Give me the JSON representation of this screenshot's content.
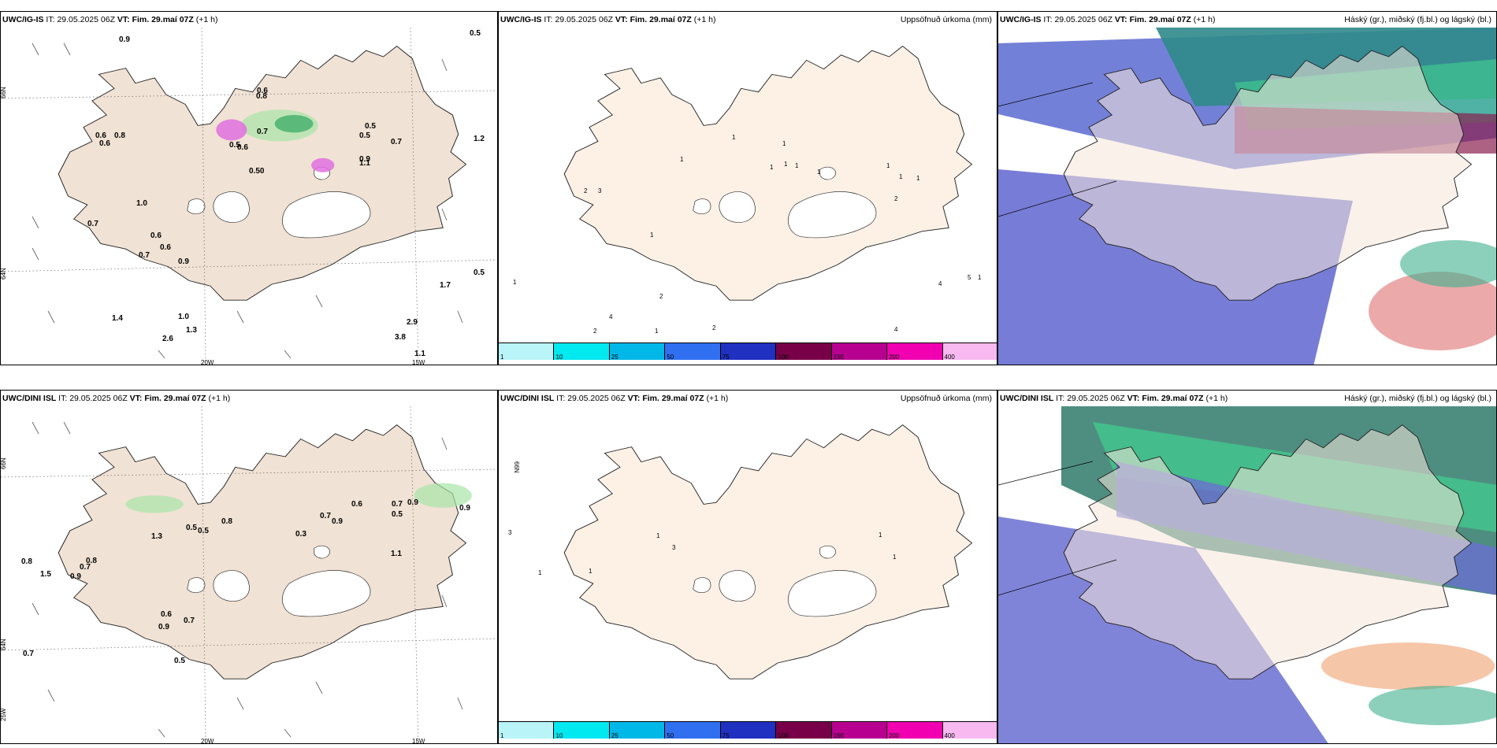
{
  "panels": [
    {
      "header": {
        "model": "UWC/IG-IS",
        "it_label": "IT:",
        "it_value": "29.05.2025 06Z",
        "vt_label": "VT:",
        "vt_value": "Fim. 29.maí 07Z",
        "lead": "(+1 h)"
      }
    },
    {
      "header": {
        "model": "UWC/IG-IS",
        "it_label": "IT:",
        "it_value": "29.05.2025 06Z",
        "vt_label": "VT:",
        "vt_value": "Fim. 29.maí 07Z",
        "lead": "(+1 h)"
      },
      "title_right": "Uppsöfnuð úrkoma (mm)"
    },
    {
      "header": {
        "model": "UWC/IG-IS",
        "it_label": "IT:",
        "it_value": "29.05.2025 06Z",
        "vt_label": "VT:",
        "vt_value": "Fim. 29.maí 07Z",
        "lead": "(+1 h)"
      },
      "title_right": "Háský (gr.), miðský (fj.bl.) og lágský (bl.)"
    },
    {
      "header": {
        "model": "UWC/DINI ISL",
        "it_label": "IT:",
        "it_value": "29.05.2025 06Z",
        "vt_label": "VT:",
        "vt_value": "Fim. 29.maí 07Z",
        "lead": "(+1 h)"
      }
    },
    {
      "header": {
        "model": "UWC/DINI ISL",
        "it_label": "IT:",
        "it_value": "29.05.2025 06Z",
        "vt_label": "VT:",
        "vt_value": "Fim. 29.maí 07Z",
        "lead": "(+1 h)"
      },
      "title_right": "Uppsöfnuð úrkoma (mm)"
    },
    {
      "header": {
        "model": "UWC/DINI ISL",
        "it_label": "IT:",
        "it_value": "29.05.2025 06Z",
        "vt_label": "VT:",
        "vt_value": "Fim. 29.maí 07Z",
        "lead": "(+1 h)"
      },
      "title_right": "Háský (gr.), miðský (fj.bl.) og lágský (bl.)"
    }
  ],
  "axis_labels": {
    "lat66": "66N",
    "lat64": "64N",
    "lon20": "20W",
    "lon15": "15W",
    "lon25": "25W"
  },
  "colorbar": {
    "ticks": [
      "1",
      "10",
      "25",
      "50",
      "75",
      "100",
      "150",
      "200",
      "400"
    ],
    "colors": [
      "#b8f4f8",
      "#00e8f0",
      "#00b8e8",
      "#3070f0",
      "#2030c0",
      "#780048",
      "#b80090",
      "#f000b0",
      "#f8b8f0"
    ]
  },
  "precip_values_top": [
    "0.9",
    "0.6",
    "0.5",
    "0.8",
    "0.6",
    "1.0",
    "0.7",
    "0.5",
    "0.6",
    "1.2",
    "0.7",
    "0.6",
    "0.5",
    "0.7",
    "0.9",
    "0.7",
    "0.5",
    "1.4",
    "1.0",
    "1.3",
    "2.6",
    "1.1",
    "3.8",
    "2.9",
    "1.7",
    "0.5",
    "0.6",
    "0.8",
    "0.6",
    "0.50",
    "1.1",
    "0.9"
  ],
  "precip_values_bottom": [
    "0.7",
    "0.8",
    "0.6",
    "0.9",
    "0.7",
    "0.5",
    "0.5",
    "0.8",
    "1.3",
    "1.5",
    "0.9",
    "0.8",
    "0.7",
    "0.5",
    "0.9",
    "0.7",
    "0.5",
    "0.6",
    "0.7",
    "0.9",
    "1.1",
    "0.3",
    "0.9"
  ],
  "accum_values_top": [
    "1",
    "1",
    "1",
    "1",
    "1",
    "1",
    "2",
    "3",
    "1",
    "1",
    "2",
    "1",
    "1",
    "4",
    "5",
    "1",
    "2",
    "4",
    "2",
    "1",
    "2",
    "1",
    "1",
    "4"
  ],
  "accum_values_bottom": [
    "3",
    "1",
    "3",
    "1",
    "1",
    "1",
    "1"
  ]
}
